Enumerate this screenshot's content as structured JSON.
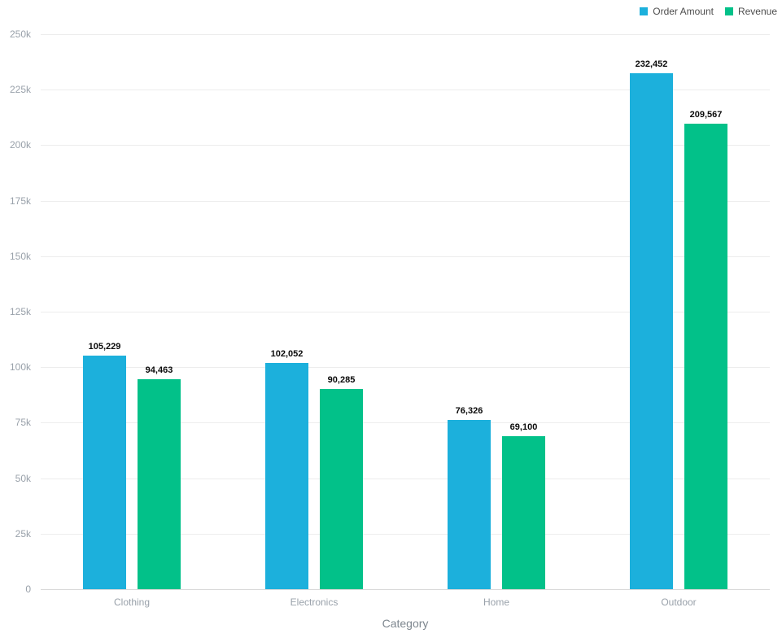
{
  "chart_data": {
    "type": "bar",
    "title": "",
    "xlabel": "Category",
    "ylabel": "",
    "categories": [
      "Clothing",
      "Electronics",
      "Home",
      "Outdoor"
    ],
    "series": [
      {
        "name": "Order Amount",
        "color": "#1CB0DC",
        "values": [
          105229,
          102052,
          76326,
          232452
        ]
      },
      {
        "name": "Revenue",
        "color": "#02C189",
        "values": [
          94463,
          90285,
          69100,
          209567
        ]
      }
    ],
    "value_labels": [
      "105,229",
      "94,463",
      "102,052",
      "90,285",
      "76,326",
      "69,100",
      "232,452",
      "209,567"
    ],
    "ylim": [
      0,
      250000
    ],
    "y_tick_interval": 25000,
    "y_tick_labels": [
      "0",
      "25k",
      "50k",
      "75k",
      "100k",
      "125k",
      "150k",
      "175k",
      "200k",
      "225k",
      "250k"
    ],
    "grid": "horizontal",
    "legend_position": "top-right"
  },
  "colors": {
    "background": "#ffffff",
    "gridline": "#ededed",
    "baseline": "#d9d9d9",
    "tick_label": "#99a1aa",
    "axis_title": "#7e878f",
    "legend_text": "#4d4d4d",
    "value_label": "#0a0a0a"
  }
}
